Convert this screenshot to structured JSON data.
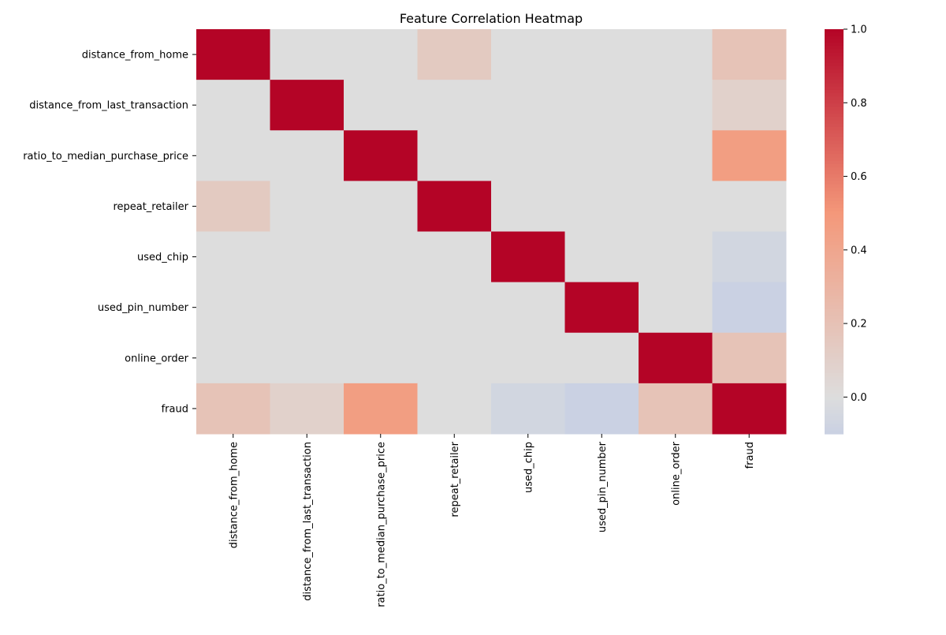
{
  "chart_data": {
    "type": "heatmap",
    "title": "Feature Correlation Heatmap",
    "xlabel": "",
    "ylabel": "",
    "rows": [
      "distance_from_home",
      "distance_from_last_transaction",
      "ratio_to_median_purchase_price",
      "repeat_retailer",
      "used_chip",
      "used_pin_number",
      "online_order",
      "fraud"
    ],
    "columns": [
      "distance_from_home",
      "distance_from_last_transaction",
      "ratio_to_median_purchase_price",
      "repeat_retailer",
      "used_chip",
      "used_pin_number",
      "online_order",
      "fraud"
    ],
    "values": [
      [
        1.0,
        0.0,
        0.0,
        0.14,
        0.0,
        0.0,
        0.0,
        0.19
      ],
      [
        0.0,
        1.0,
        0.0,
        0.0,
        0.0,
        0.0,
        0.0,
        0.09
      ],
      [
        0.0,
        0.0,
        1.0,
        0.0,
        0.0,
        0.0,
        0.0,
        0.46
      ],
      [
        0.14,
        0.0,
        0.0,
        1.0,
        0.0,
        0.0,
        0.0,
        0.0
      ],
      [
        0.0,
        0.0,
        0.0,
        0.0,
        1.0,
        0.0,
        0.0,
        -0.06
      ],
      [
        0.0,
        0.0,
        0.0,
        0.0,
        0.0,
        1.0,
        0.0,
        -0.1
      ],
      [
        0.0,
        0.0,
        0.0,
        0.0,
        0.0,
        0.0,
        1.0,
        0.19
      ],
      [
        0.19,
        0.09,
        0.46,
        0.0,
        -0.06,
        -0.1,
        0.19,
        1.0
      ]
    ],
    "colorbar": {
      "colormap": "coolwarm",
      "center": 0.0,
      "vmin": -0.1,
      "vmax": 1.0,
      "ticks": [
        0.0,
        0.2,
        0.4,
        0.6,
        0.8,
        1.0
      ],
      "tick_labels": [
        "0.0",
        "0.2",
        "0.4",
        "0.6",
        "0.8",
        "1.0"
      ]
    },
    "grid": false,
    "legend": "colorbar-right"
  }
}
